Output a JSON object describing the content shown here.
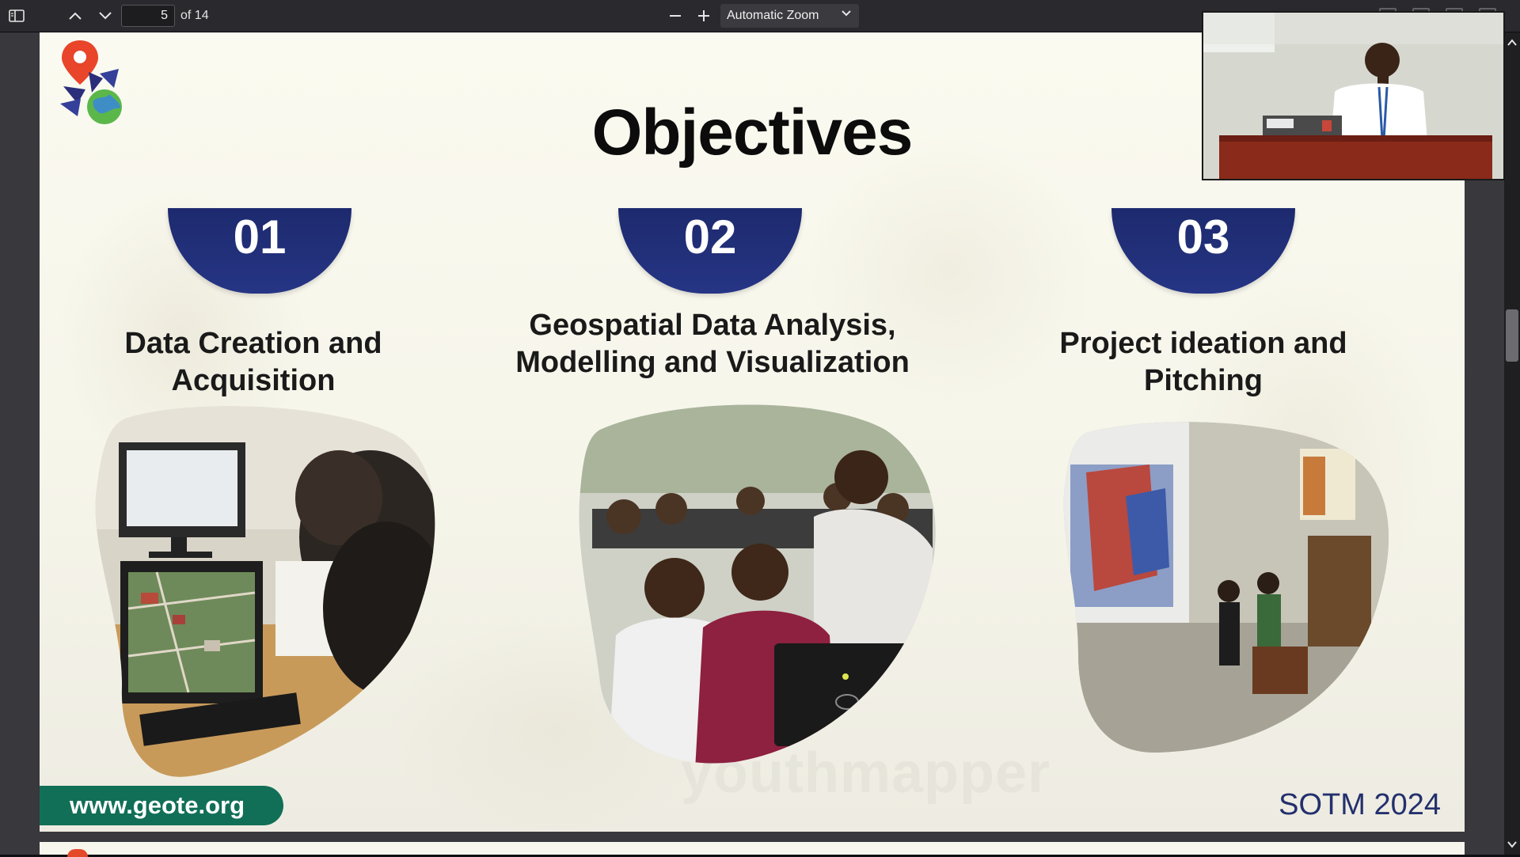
{
  "toolbar": {
    "sidebar_toggle_icon": "sidebar-toggle-icon",
    "prev_icon": "chevron-up-icon",
    "next_icon": "chevron-down-icon",
    "page_number": "5",
    "page_count": "of 14",
    "zoom_out_icon": "minus-icon",
    "zoom_in_icon": "plus-icon",
    "zoom_value": "Automatic Zoom"
  },
  "slide": {
    "title": "Objectives",
    "objectives": [
      {
        "number": "01",
        "title_line1": "Data Creation and",
        "title_line2": "Acquisition"
      },
      {
        "number": "02",
        "title_line1": "Geospatial Data Analysis,",
        "title_line2": "Modelling and Visualization"
      },
      {
        "number": "03",
        "title_line1": "Project ideation and",
        "title_line2": "Pitching"
      }
    ],
    "website": "www.geote.org",
    "event": "SOTM 2024"
  },
  "colors": {
    "badge_navy": "#1d2a6e",
    "website_green": "#116f57",
    "event_navy": "#24306d",
    "toolbar_bg": "#2a2a2e"
  }
}
